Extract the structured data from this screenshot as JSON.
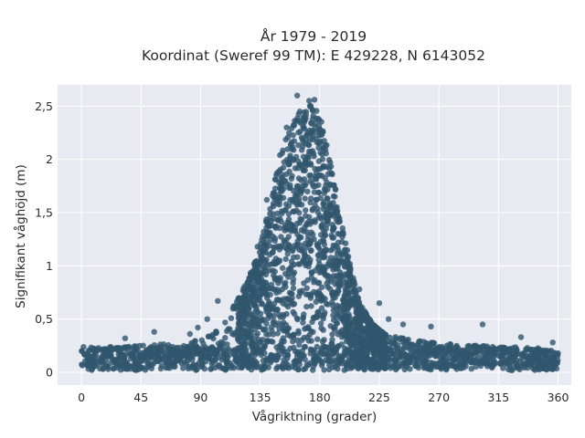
{
  "chart_data": {
    "type": "scatter",
    "title": "År 1979 - 2019",
    "subtitle": "Koordinat (Sweref 99 TM): E 429228, N 6143052",
    "xlabel": "Vågriktning (grader)",
    "ylabel": "Signifikant våghöjd (m)",
    "xlim": [
      -18,
      370
    ],
    "ylim": [
      -0.12,
      2.7
    ],
    "x_ticks": [
      0,
      45,
      90,
      135,
      180,
      225,
      270,
      315,
      360
    ],
    "y_ticks": [
      0,
      0.5,
      1,
      1.5,
      2,
      2.5
    ],
    "y_tick_labels": [
      "0",
      "0,5",
      "1",
      "1,5",
      "2",
      "2,5"
    ],
    "grid": true,
    "marker_color": "#31566e",
    "plot_background": "#e8eaf2",
    "density_envelope": {
      "x": [
        0,
        20,
        45,
        70,
        90,
        100,
        110,
        120,
        130,
        135,
        140,
        145,
        150,
        155,
        160,
        165,
        170,
        175,
        180,
        185,
        190,
        195,
        200,
        205,
        210,
        220,
        230,
        250,
        270,
        300,
        330,
        360
      ],
      "max_y": [
        0.2,
        0.22,
        0.25,
        0.27,
        0.3,
        0.36,
        0.5,
        0.72,
        1.0,
        1.18,
        1.45,
        1.75,
        1.98,
        2.22,
        2.35,
        2.45,
        2.48,
        2.52,
        2.42,
        2.15,
        1.85,
        1.5,
        1.2,
        0.9,
        0.65,
        0.45,
        0.35,
        0.3,
        0.27,
        0.25,
        0.22,
        0.2
      ]
    },
    "outliers": [
      {
        "x": 163,
        "y": 2.6
      },
      {
        "x": 176,
        "y": 2.56
      },
      {
        "x": 172,
        "y": 2.55
      },
      {
        "x": 155,
        "y": 2.3
      },
      {
        "x": 150,
        "y": 2.04
      },
      {
        "x": 140,
        "y": 1.62
      },
      {
        "x": 133,
        "y": 1.18
      },
      {
        "x": 124,
        "y": 0.78
      },
      {
        "x": 115,
        "y": 0.62
      },
      {
        "x": 103,
        "y": 0.67
      },
      {
        "x": 95,
        "y": 0.5
      },
      {
        "x": 88,
        "y": 0.42
      },
      {
        "x": 82,
        "y": 0.36
      },
      {
        "x": 55,
        "y": 0.38
      },
      {
        "x": 33,
        "y": 0.32
      },
      {
        "x": 225,
        "y": 0.65
      },
      {
        "x": 232,
        "y": 0.5
      },
      {
        "x": 243,
        "y": 0.45
      },
      {
        "x": 264,
        "y": 0.43
      },
      {
        "x": 303,
        "y": 0.45
      },
      {
        "x": 332,
        "y": 0.33
      },
      {
        "x": 356,
        "y": 0.28
      },
      {
        "x": 200,
        "y": 1.1
      },
      {
        "x": 195,
        "y": 1.42
      },
      {
        "x": 210,
        "y": 0.78
      }
    ]
  }
}
